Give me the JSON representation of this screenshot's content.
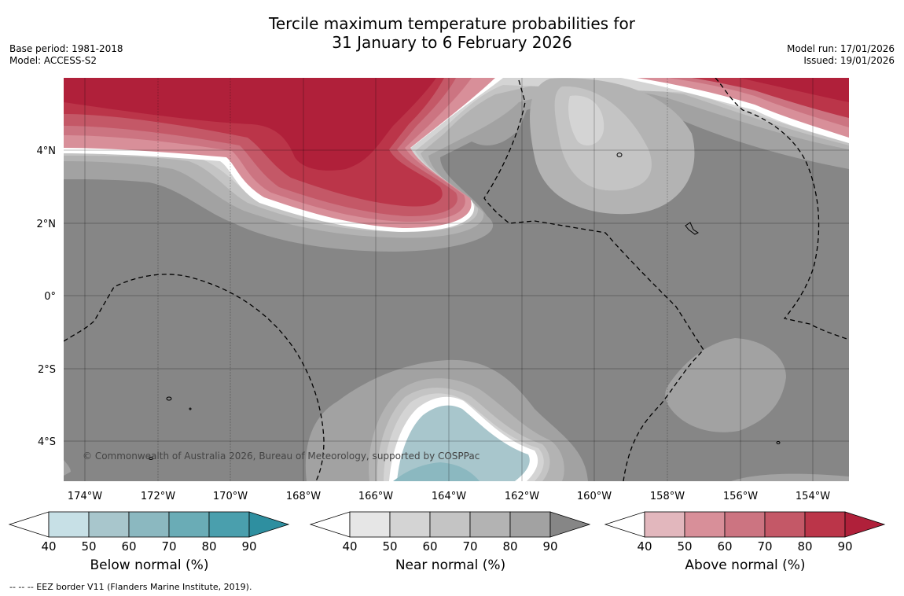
{
  "title_line1": "Tercile maximum temperature probabilities for",
  "title_line2": "31 January to 6 February 2026",
  "base_period": "Base period: 1981-2018",
  "model": "Model: ACCESS-S2",
  "model_run": "Model run: 17/01/2026",
  "issued": "Issued: 19/01/2026",
  "copyright": "© Commonwealth of Australia 2026, Bureau of Meteorology, supported by COSPPac",
  "footnote": "--  --  -- EEZ border V11 (Flanders Marine Institute, 2019).",
  "lat_labels": [
    "4°N",
    "2°N",
    "0°",
    "2°S",
    "4°S"
  ],
  "lon_labels": [
    "174°W",
    "172°W",
    "170°W",
    "168°W",
    "166°W",
    "164°W",
    "162°W",
    "160°W",
    "158°W",
    "156°W",
    "154°W"
  ],
  "colorbars": [
    {
      "label": "Below normal (%)",
      "ticks": [
        "40",
        "50",
        "60",
        "70",
        "80",
        "90"
      ],
      "colors": [
        "#ffffff",
        "#c7e0e6",
        "#a8c6cc",
        "#8bb8c0",
        "#6aacb6",
        "#4a9fad",
        "#2e8fa0"
      ]
    },
    {
      "label": "Near normal (%)",
      "ticks": [
        "40",
        "50",
        "60",
        "70",
        "80",
        "90"
      ],
      "colors": [
        "#ffffff",
        "#e6e6e6",
        "#d4d4d4",
        "#c4c4c4",
        "#b3b3b3",
        "#a2a2a2",
        "#868686"
      ]
    },
    {
      "label": "Above normal (%)",
      "ticks": [
        "40",
        "50",
        "60",
        "70",
        "80",
        "90"
      ],
      "colors": [
        "#ffffff",
        "#e2b7bd",
        "#d88f99",
        "#cc7481",
        "#c45867",
        "#bb3549",
        "#b0203a"
      ]
    }
  ],
  "palette": {
    "near_dark": "#868686",
    "near_mid": "#a2a2a2",
    "near_light": "#b3b3b3",
    "near_lighter": "#c4c4c4",
    "near_pale": "#d4d4d4",
    "above_dark": "#b0203a",
    "above_mid": "#bb3549",
    "above_light": "#c45867",
    "above_lighter": "#cc7481",
    "above_pale": "#d88f99",
    "below_main": "#a8c6cc",
    "below_dark": "#6aacb6"
  }
}
